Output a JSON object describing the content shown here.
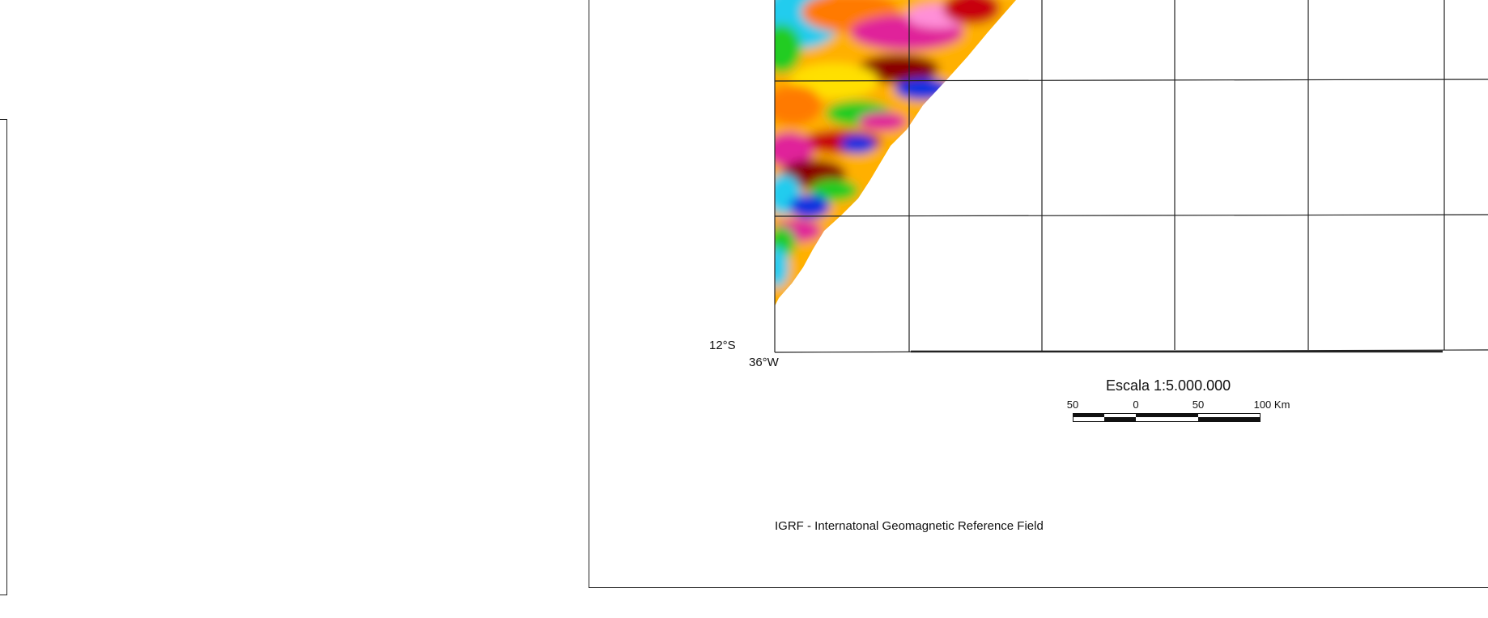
{
  "map": {
    "latitude_label": "12°S",
    "longitude_label": "36°W",
    "colors": {
      "grid_line": "#222222",
      "magenta": "#e0209a",
      "pink": "#ff8fd8",
      "red": "#c80010",
      "dark_red": "#8a0000",
      "orange": "#ff7a00",
      "yellow": "#ffe000",
      "green": "#22cc22",
      "cyan": "#22ccee",
      "blue": "#1030e0"
    }
  },
  "scale": {
    "title": "Escala 1:5.000.000",
    "ticks": [
      "50",
      "0",
      "50",
      "100 Km"
    ]
  },
  "note": {
    "text": "IGRF - Internatonal Geomagnetic Reference Field"
  }
}
